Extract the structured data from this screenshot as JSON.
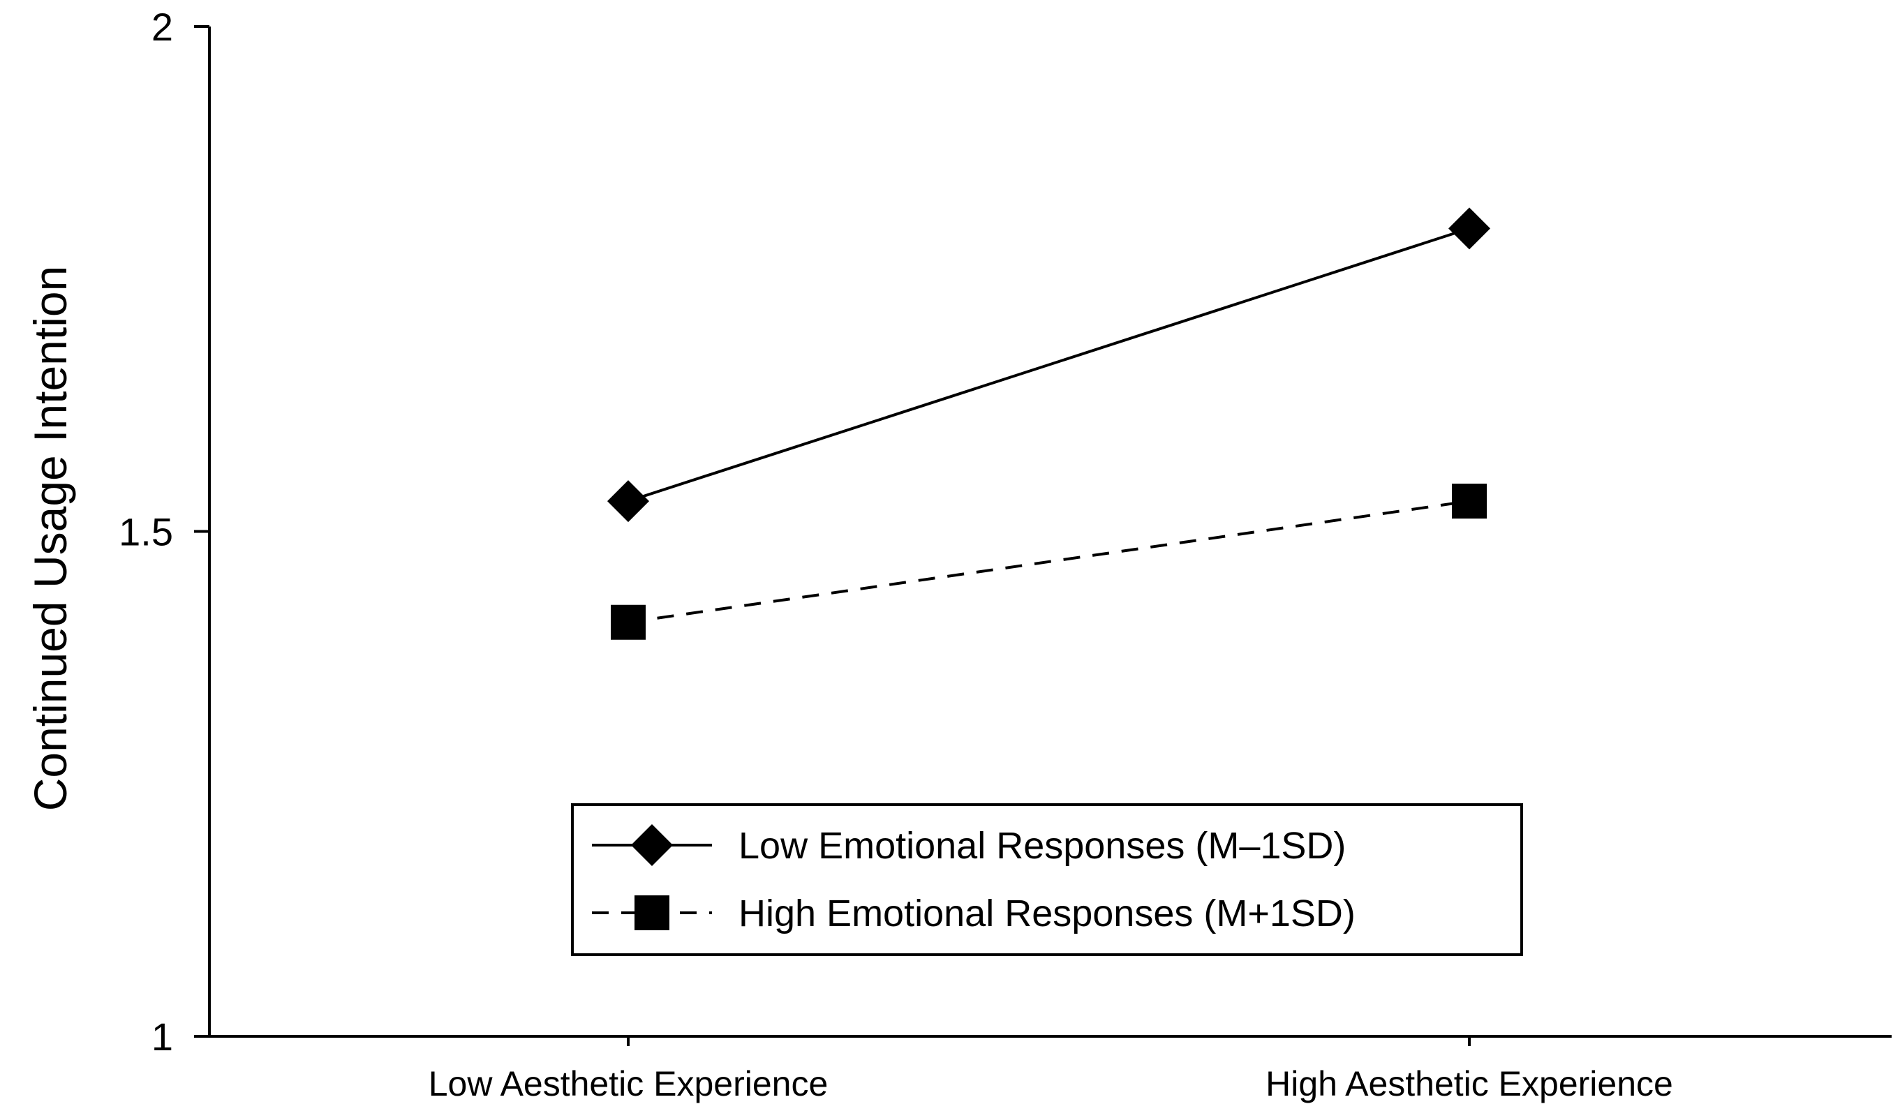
{
  "chart_data": {
    "type": "line",
    "title": "",
    "xlabel": "",
    "ylabel": "Continued Usage Intention",
    "categories": [
      "Low Aesthetic Experience",
      "High Aesthetic Experience"
    ],
    "ylim": [
      1,
      2
    ],
    "yticks": [
      1,
      1.5,
      2
    ],
    "ytick_labels": [
      "1",
      "1.5",
      "2"
    ],
    "grid": false,
    "legend_position": "bottom-right",
    "series": [
      {
        "name": "Low Emotional Responses (M–1SD)",
        "values": [
          1.53,
          1.8
        ],
        "line_style": "solid",
        "marker": "diamond",
        "color": "#000000"
      },
      {
        "name": "High Emotional Responses (M+1SD)",
        "values": [
          1.41,
          1.53
        ],
        "line_style": "dashed",
        "marker": "square",
        "color": "#000000"
      }
    ]
  }
}
